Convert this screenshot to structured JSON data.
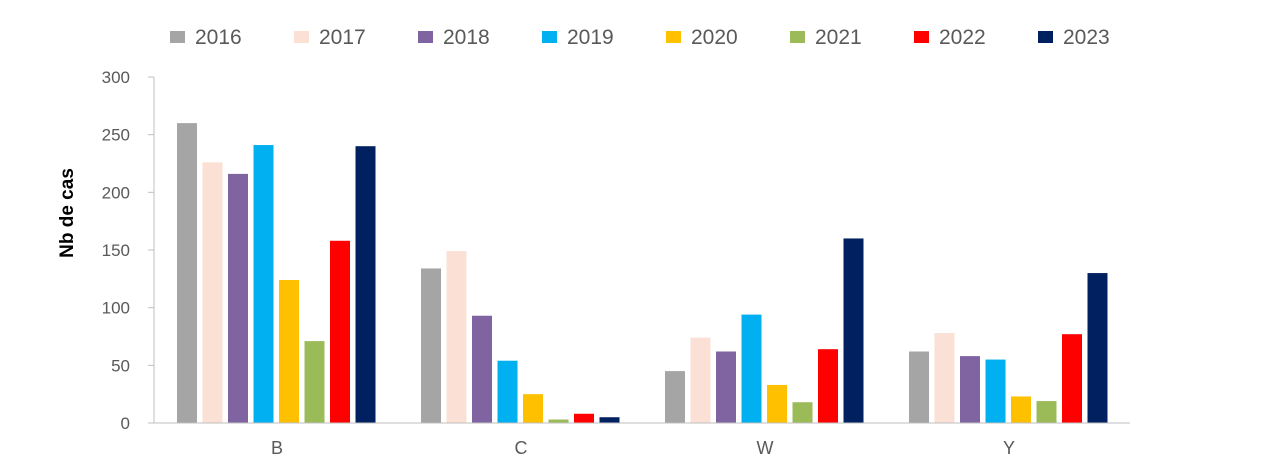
{
  "chart_data": {
    "type": "bar",
    "title": "",
    "xlabel": "",
    "ylabel": "Nb de cas",
    "ylim": [
      0,
      300
    ],
    "yticks": [
      0,
      50,
      100,
      150,
      200,
      250,
      300
    ],
    "grid": false,
    "legend_position": "top",
    "categories": [
      "B",
      "C",
      "W",
      "Y"
    ],
    "series": [
      {
        "name": "2016",
        "color": "#a5a5a5",
        "values": [
          260,
          134,
          45,
          62
        ]
      },
      {
        "name": "2017",
        "color": "#fbe0d6",
        "values": [
          226,
          149,
          74,
          78
        ]
      },
      {
        "name": "2018",
        "color": "#8064a2",
        "values": [
          216,
          93,
          62,
          58
        ]
      },
      {
        "name": "2019",
        "color": "#00b0f0",
        "values": [
          241,
          54,
          94,
          55
        ]
      },
      {
        "name": "2020",
        "color": "#ffc000",
        "values": [
          124,
          25,
          33,
          23
        ]
      },
      {
        "name": "2021",
        "color": "#9bbb59",
        "values": [
          71,
          3,
          18,
          19
        ]
      },
      {
        "name": "2022",
        "color": "#ff0000",
        "values": [
          158,
          8,
          64,
          77
        ]
      },
      {
        "name": "2023",
        "color": "#002060",
        "values": [
          240,
          5,
          160,
          130
        ]
      }
    ]
  }
}
